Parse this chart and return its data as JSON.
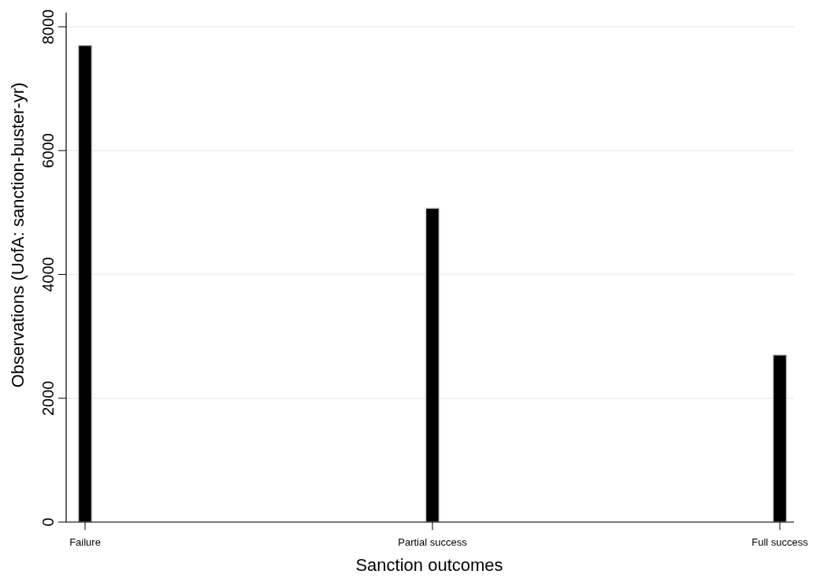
{
  "chart_data": {
    "type": "bar",
    "xlabel": "Sanction outcomes",
    "ylabel": "Observations (UofA: sanction-buster-yr)",
    "categories": [
      "Failure",
      "Partial success",
      "Full success"
    ],
    "values": [
      7700,
      5070,
      2700
    ],
    "color": "#000000",
    "ylim": [
      0,
      8000
    ],
    "yticks": [
      0,
      2000,
      4000,
      6000,
      8000
    ],
    "grid": "y"
  }
}
